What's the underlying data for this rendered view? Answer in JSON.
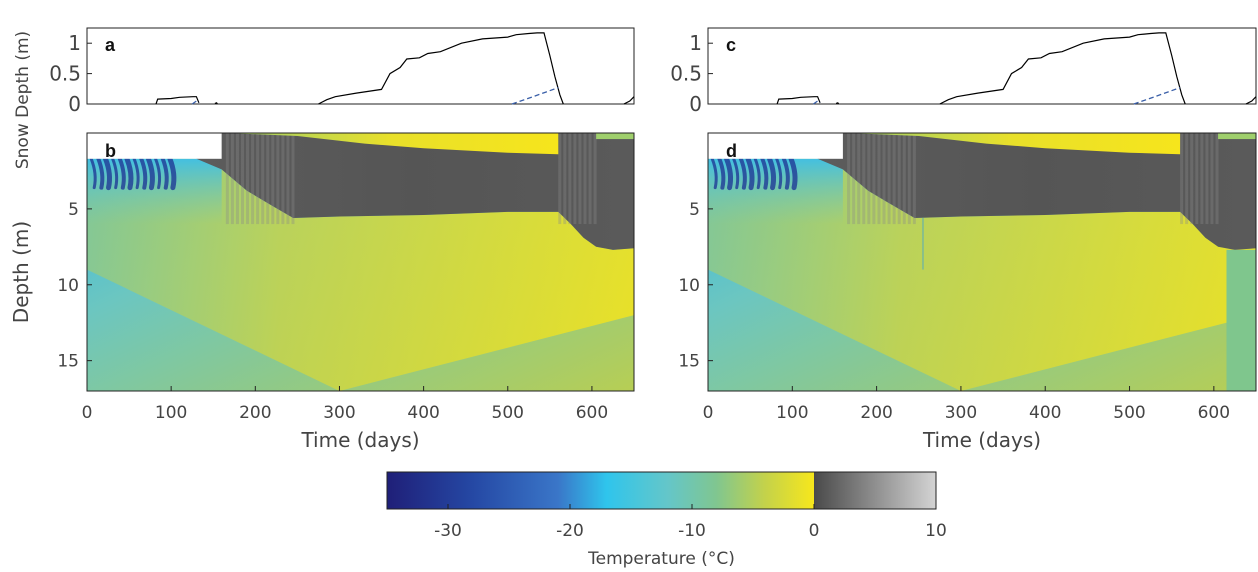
{
  "chart_data": [
    {
      "panel": "a",
      "type": "line",
      "ylabel": "Snow Depth (m)",
      "xlim": [
        0,
        650
      ],
      "ylim": [
        0,
        1.25
      ],
      "yticks": [
        0,
        0.5,
        1
      ],
      "ytick_labels": [
        "0",
        "0.5",
        "1"
      ],
      "series": [
        {
          "style": "solid-black",
          "segments": [
            [
              [
                82,
                0
              ],
              [
                84,
                0.08
              ],
              [
                100,
                0.09
              ],
              [
                110,
                0.11
              ],
              [
                126,
                0.12
              ],
              [
                130,
                0.12
              ],
              [
                133,
                0.02
              ]
            ],
            [
              [
                152,
                0.01
              ],
              [
                154,
                0.02
              ],
              [
                155,
                0.0
              ]
            ],
            [
              [
                275,
                0
              ],
              [
                285,
                0.07
              ],
              [
                295,
                0.12
              ],
              [
                320,
                0.18
              ],
              [
                350,
                0.24
              ],
              [
                360,
                0.5
              ],
              [
                372,
                0.6
              ],
              [
                380,
                0.74
              ],
              [
                395,
                0.76
              ],
              [
                405,
                0.83
              ],
              [
                420,
                0.86
              ],
              [
                445,
                1.0
              ],
              [
                470,
                1.07
              ],
              [
                500,
                1.1
              ],
              [
                510,
                1.14
              ],
              [
                525,
                1.16
              ],
              [
                535,
                1.17
              ],
              [
                543,
                1.17
              ],
              [
                550,
                0.8
              ],
              [
                556,
                0.45
              ],
              [
                562,
                0.15
              ],
              [
                566,
                0.0
              ]
            ],
            [
              [
                638,
                0
              ],
              [
                645,
                0.05
              ],
              [
                650,
                0.12
              ]
            ]
          ]
        },
        {
          "style": "dashed-blue",
          "segments": [
            [
              [
                125,
                0.0
              ],
              [
                130,
                0.05
              ],
              [
                133,
                0.02
              ]
            ],
            [
              [
                505,
                0.0
              ],
              [
                530,
                0.12
              ],
              [
                560,
                0.27
              ]
            ]
          ]
        }
      ]
    },
    {
      "panel": "b",
      "type": "heatmap",
      "xlabel": "Time (days)",
      "ylabel": "Depth (m)",
      "xlim": [
        0,
        650
      ],
      "ylim": [
        17,
        0
      ],
      "xticks": [
        0,
        100,
        200,
        300,
        400,
        500,
        600
      ],
      "xtick_labels": [
        "0",
        "100",
        "200",
        "300",
        "400",
        "500",
        "600"
      ],
      "yticks": [
        5,
        10,
        15
      ],
      "ytick_labels": [
        "5",
        "10",
        "15"
      ],
      "surface_depth_m": 1.7,
      "thaw_front_depth_m": [
        [
          0,
          1.7
        ],
        [
          130,
          1.7
        ],
        [
          160,
          2.4
        ],
        [
          190,
          3.8
        ],
        [
          220,
          4.8
        ],
        [
          245,
          5.6
        ],
        [
          300,
          5.5
        ],
        [
          400,
          5.4
        ],
        [
          500,
          5.2
        ],
        [
          560,
          5.2
        ],
        [
          575,
          6.0
        ],
        [
          590,
          6.9
        ],
        [
          605,
          7.5
        ],
        [
          625,
          7.7
        ],
        [
          650,
          7.6
        ]
      ],
      "snow_to_ice_depth_m": [
        [
          165,
          0
        ],
        [
          250,
          0.2
        ],
        [
          330,
          0.7
        ],
        [
          400,
          1.0
        ],
        [
          500,
          1.3
        ],
        [
          560,
          1.4
        ]
      ],
      "value_min_c": -35,
      "value_max_c": 10,
      "sample_temperatures_c": [
        {
          "day": 20,
          "depth_m": 2.5,
          "t": -32
        },
        {
          "day": 60,
          "depth_m": 4.0,
          "t": -19
        },
        {
          "day": 100,
          "depth_m": 8.0,
          "t": -13
        },
        {
          "day": 300,
          "depth_m": 10.0,
          "t": -7
        },
        {
          "day": 500,
          "depth_m": 15.0,
          "t": -7
        },
        {
          "day": 600,
          "depth_m": 9.0,
          "t": -3
        }
      ],
      "letter": "b"
    },
    {
      "panel": "c",
      "type": "line",
      "ylabel": "",
      "xlim": [
        0,
        650
      ],
      "ylim": [
        0,
        1.25
      ],
      "yticks": [
        0,
        0.5,
        1
      ],
      "ytick_labels": [
        "0",
        "0.5",
        "1"
      ],
      "letter": "c"
    },
    {
      "panel": "d",
      "type": "heatmap",
      "xlabel": "Time (days)",
      "ylabel": "",
      "xlim": [
        0,
        650
      ],
      "ylim": [
        17,
        0
      ],
      "xticks": [
        0,
        100,
        200,
        300,
        400,
        500,
        600
      ],
      "xtick_labels": [
        "0",
        "100",
        "200",
        "300",
        "400",
        "500",
        "600"
      ],
      "yticks": [
        5,
        10,
        15
      ],
      "ytick_labels": [
        "5",
        "10",
        "15"
      ],
      "vertical_discontinuities_day": [
        255,
        615
      ],
      "letter": "d"
    }
  ],
  "panel_letters": [
    "a",
    "b",
    "c",
    "d"
  ],
  "colorbar": {
    "label": "Temperature (°C)",
    "range": [
      -35,
      10
    ],
    "ticks": [
      -30,
      -20,
      -10,
      0,
      10
    ],
    "tick_labels": [
      "-30",
      "-20",
      "-10",
      "0",
      "10"
    ],
    "color_stops": [
      {
        "t": -35,
        "color": "#1f1f78"
      },
      {
        "t": -28,
        "color": "#2548a4"
      },
      {
        "t": -21,
        "color": "#3a76c8"
      },
      {
        "t": -17,
        "color": "#2fc5ec"
      },
      {
        "t": -12,
        "color": "#64c6c9"
      },
      {
        "t": -8,
        "color": "#80c690"
      },
      {
        "t": -4,
        "color": "#c4d24a"
      },
      {
        "t": 0,
        "color": "#f7e71c"
      },
      {
        "t": 0.01,
        "color": "#4a4a4a"
      },
      {
        "t": 10,
        "color": "#d4d4d4"
      }
    ]
  },
  "colors": {
    "axis": "#222222",
    "snow_line": "#000000",
    "dashed_line": "#3a5fa8",
    "blank_box": "#ffffff"
  }
}
